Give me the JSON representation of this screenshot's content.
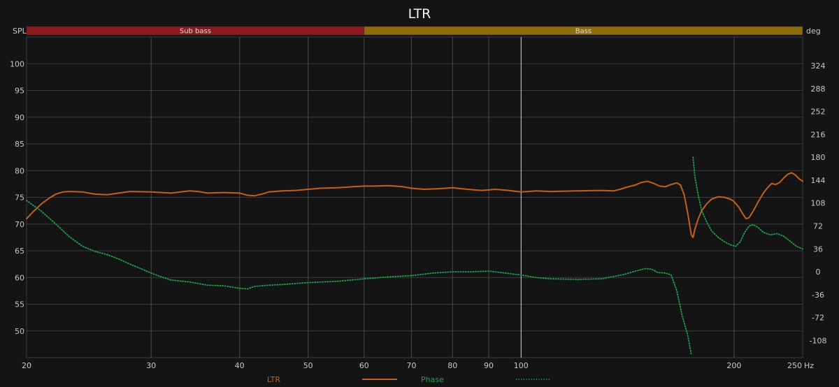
{
  "chart_data": {
    "type": "line",
    "title": "LTR",
    "left_axis_label": "SPL",
    "right_axis_label": "deg",
    "x_unit": "Hz",
    "x_scale": "log",
    "xlim": [
      20,
      250
    ],
    "ylim": [
      45,
      105
    ],
    "y2lim": [
      -135,
      369
    ],
    "x_tick_labels": [
      {
        "value": 20,
        "label": "20"
      },
      {
        "value": 30,
        "label": "30"
      },
      {
        "value": 40,
        "label": "40"
      },
      {
        "value": 50,
        "label": "50"
      },
      {
        "value": 60,
        "label": "60"
      },
      {
        "value": 70,
        "label": "70"
      },
      {
        "value": 80,
        "label": "80"
      },
      {
        "value": 90,
        "label": "90"
      },
      {
        "value": 100,
        "label": "100"
      },
      {
        "value": 200,
        "label": "200"
      },
      {
        "value": 250,
        "label": "250"
      }
    ],
    "x_gridlines": [
      30,
      40,
      50,
      60,
      70,
      80,
      90,
      100,
      200
    ],
    "y_ticks": [
      100,
      95,
      90,
      85,
      80,
      75,
      70,
      65,
      60,
      55,
      50
    ],
    "y2_ticks": [
      324,
      288,
      252,
      216,
      180,
      144,
      108,
      72,
      36,
      0,
      -36,
      -72,
      -108
    ],
    "grid": true,
    "bands": [
      {
        "label": "Sub bass",
        "from": 20,
        "to": 60,
        "color": "#8e1a1f"
      },
      {
        "label": "Bass",
        "from": 60,
        "to": 250,
        "color": "#8d6c10"
      }
    ],
    "legend_position": "bottom",
    "series": [
      {
        "name": "LTR",
        "axis": "left",
        "color": "#c0601e",
        "style": "solid",
        "points": [
          [
            20,
            71.0
          ],
          [
            20.5,
            72.5
          ],
          [
            21,
            73.8
          ],
          [
            21.5,
            74.8
          ],
          [
            22,
            75.6
          ],
          [
            22.5,
            76.0
          ],
          [
            23,
            76.1
          ],
          [
            24,
            76.0
          ],
          [
            25,
            75.6
          ],
          [
            26,
            75.5
          ],
          [
            27,
            75.8
          ],
          [
            28,
            76.1
          ],
          [
            30,
            76.0
          ],
          [
            32,
            75.8
          ],
          [
            34,
            76.2
          ],
          [
            35,
            76.1
          ],
          [
            36,
            75.8
          ],
          [
            38,
            75.9
          ],
          [
            40,
            75.8
          ],
          [
            41,
            75.4
          ],
          [
            42,
            75.3
          ],
          [
            43,
            75.6
          ],
          [
            44,
            76.0
          ],
          [
            46,
            76.2
          ],
          [
            48,
            76.3
          ],
          [
            50,
            76.5
          ],
          [
            52,
            76.7
          ],
          [
            55,
            76.8
          ],
          [
            58,
            77.0
          ],
          [
            60,
            77.1
          ],
          [
            62,
            77.1
          ],
          [
            65,
            77.2
          ],
          [
            68,
            77.0
          ],
          [
            70,
            76.7
          ],
          [
            73,
            76.5
          ],
          [
            76,
            76.6
          ],
          [
            80,
            76.8
          ],
          [
            84,
            76.5
          ],
          [
            88,
            76.3
          ],
          [
            92,
            76.5
          ],
          [
            96,
            76.3
          ],
          [
            100,
            76.0
          ],
          [
            105,
            76.2
          ],
          [
            110,
            76.1
          ],
          [
            120,
            76.2
          ],
          [
            130,
            76.3
          ],
          [
            135,
            76.2
          ],
          [
            138,
            76.5
          ],
          [
            141,
            76.9
          ],
          [
            145,
            77.3
          ],
          [
            148,
            77.8
          ],
          [
            151,
            78.0
          ],
          [
            154,
            77.6
          ],
          [
            157,
            77.1
          ],
          [
            160,
            77.0
          ],
          [
            163,
            77.4
          ],
          [
            166,
            77.7
          ],
          [
            168,
            77.3
          ],
          [
            170,
            75.5
          ],
          [
            172,
            72.0
          ],
          [
            174,
            68.0
          ],
          [
            175,
            67.5
          ],
          [
            176,
            69.0
          ],
          [
            178,
            71.0
          ],
          [
            180,
            72.5
          ],
          [
            183,
            73.8
          ],
          [
            186,
            74.7
          ],
          [
            190,
            75.1
          ],
          [
            194,
            75.0
          ],
          [
            198,
            74.6
          ],
          [
            200,
            74.2
          ],
          [
            203,
            73.2
          ],
          [
            206,
            71.8
          ],
          [
            208,
            71.0
          ],
          [
            210,
            71.2
          ],
          [
            213,
            72.5
          ],
          [
            216,
            74.0
          ],
          [
            220,
            75.8
          ],
          [
            223,
            76.8
          ],
          [
            226,
            77.6
          ],
          [
            229,
            77.4
          ],
          [
            232,
            77.8
          ],
          [
            235,
            78.6
          ],
          [
            238,
            79.3
          ],
          [
            241,
            79.6
          ],
          [
            244,
            79.2
          ],
          [
            247,
            78.5
          ],
          [
            250,
            78.0
          ]
        ]
      },
      {
        "name": "Phase",
        "axis": "right",
        "color": "#1f9e4f",
        "style": "dotted",
        "points": [
          [
            20,
            112
          ],
          [
            21,
            95
          ],
          [
            22,
            75
          ],
          [
            23,
            55
          ],
          [
            24,
            40
          ],
          [
            25,
            32
          ],
          [
            26,
            27
          ],
          [
            27,
            20
          ],
          [
            28,
            12
          ],
          [
            29,
            5
          ],
          [
            30,
            -2
          ],
          [
            31,
            -8
          ],
          [
            32,
            -13
          ],
          [
            34,
            -16
          ],
          [
            36,
            -21
          ],
          [
            38,
            -22
          ],
          [
            40,
            -26
          ],
          [
            41,
            -27
          ],
          [
            42,
            -23
          ],
          [
            44,
            -21
          ],
          [
            46,
            -20
          ],
          [
            50,
            -17
          ],
          [
            55,
            -15
          ],
          [
            60,
            -11
          ],
          [
            65,
            -8
          ],
          [
            70,
            -6
          ],
          [
            75,
            -2
          ],
          [
            80,
            0
          ],
          [
            85,
            0
          ],
          [
            90,
            1
          ],
          [
            95,
            -2
          ],
          [
            100,
            -5
          ],
          [
            105,
            -9
          ],
          [
            110,
            -11
          ],
          [
            120,
            -12
          ],
          [
            130,
            -11
          ],
          [
            140,
            -4
          ],
          [
            145,
            1
          ],
          [
            150,
            5
          ],
          [
            153,
            4
          ],
          [
            156,
            -1
          ],
          [
            160,
            -2
          ],
          [
            163,
            -5
          ],
          [
            166,
            -30
          ],
          [
            169,
            -70
          ],
          [
            172,
            -100
          ],
          [
            174,
            -130
          ]
        ]
      },
      {
        "name": "Phase",
        "axis": "right",
        "color": "#1f9e4f",
        "style": "dotted",
        "show_in_legend": false,
        "points": [
          [
            175,
            180
          ],
          [
            176,
            150
          ],
          [
            178,
            120
          ],
          [
            180,
            96
          ],
          [
            183,
            78
          ],
          [
            186,
            64
          ],
          [
            190,
            54
          ],
          [
            194,
            47
          ],
          [
            198,
            42
          ],
          [
            201,
            40
          ],
          [
            204,
            47
          ],
          [
            207,
            62
          ],
          [
            210,
            72
          ],
          [
            213,
            74
          ],
          [
            216,
            70
          ],
          [
            220,
            62
          ],
          [
            225,
            58
          ],
          [
            230,
            60
          ],
          [
            235,
            56
          ],
          [
            240,
            48
          ],
          [
            245,
            40
          ],
          [
            250,
            36
          ]
        ]
      }
    ]
  }
}
